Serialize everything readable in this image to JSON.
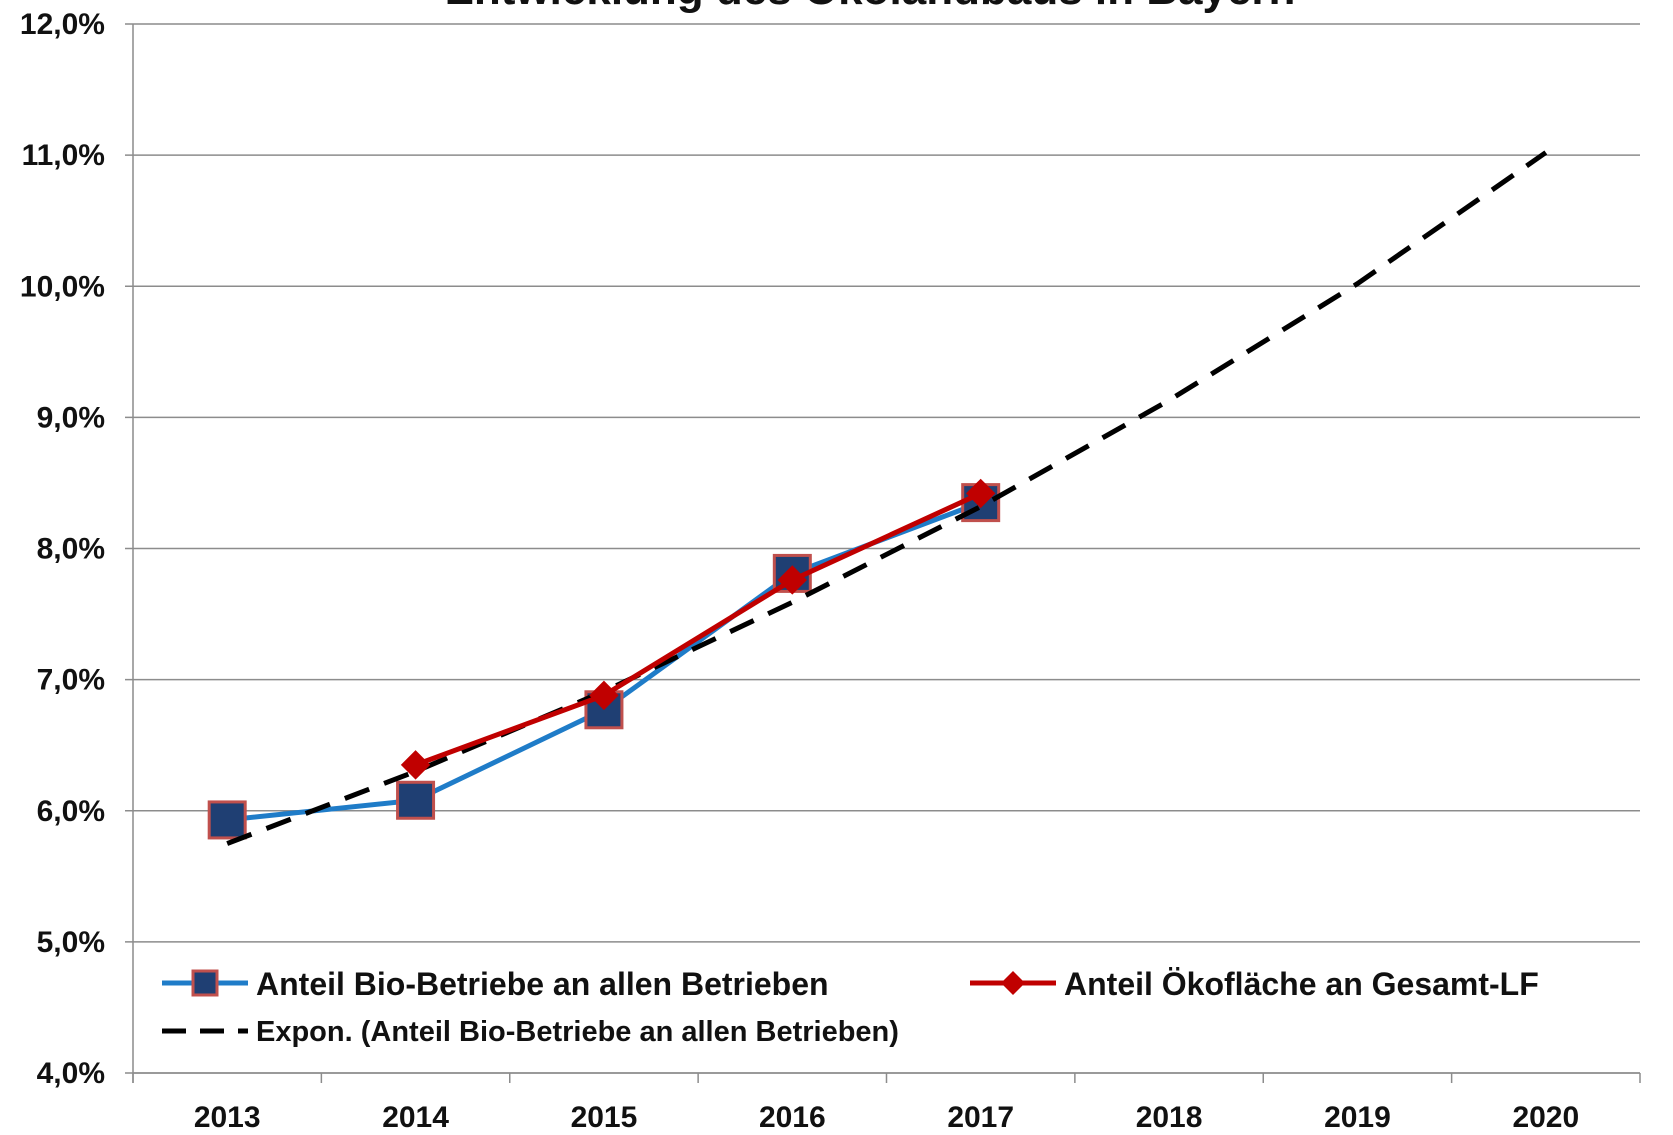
{
  "chart_data": {
    "type": "line",
    "title": "Entwicklung des Ökolandbaus in Bayern",
    "xlabel": "",
    "ylabel": "",
    "categories": [
      "2013",
      "2014",
      "2015",
      "2016",
      "2017",
      "2018",
      "2019",
      "2020"
    ],
    "y_ticks": [
      "4,0%",
      "5,0%",
      "6,0%",
      "7,0%",
      "8,0%",
      "9,0%",
      "10,0%",
      "11,0%",
      "12,0%"
    ],
    "ylim": [
      4.0,
      12.0
    ],
    "grid": true,
    "legend_position": "bottom-inside",
    "series": [
      {
        "name": "Anteil Bio-Betriebe an allen Betrieben",
        "color": "#1f7cc8",
        "marker": "square",
        "marker_fill": "#1f3f73",
        "marker_edge": "#c0504d",
        "values": [
          5.93,
          6.08,
          6.77,
          7.81,
          8.35,
          null,
          null,
          null
        ]
      },
      {
        "name": "Anteil Ökofläche an Gesamt-LF",
        "color": "#c00000",
        "marker": "diamond",
        "values": [
          null,
          6.35,
          6.88,
          7.76,
          8.42,
          null,
          null,
          null
        ]
      },
      {
        "name": "Expon. (Anteil Bio-Betriebe an allen Betrieben)",
        "color": "#000000",
        "style": "dashed",
        "values": [
          5.75,
          6.3,
          6.91,
          7.59,
          8.32,
          9.13,
          10.02,
          11.02
        ]
      }
    ]
  }
}
